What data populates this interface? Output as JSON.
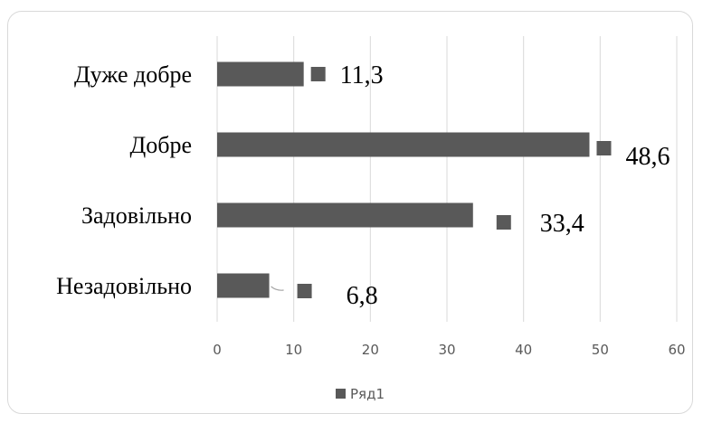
{
  "chart_data": {
    "type": "bar",
    "orientation": "horizontal",
    "categories": [
      "Дуже добре",
      "Добре",
      "Задовільно",
      "Незадовільно"
    ],
    "series": [
      {
        "name": "Ряд1",
        "values": [
          11.3,
          48.6,
          33.4,
          6.8
        ],
        "data_labels": [
          "11,3",
          "48,6",
          "33,4",
          "6,8"
        ],
        "color": "#595959"
      }
    ],
    "x_ticks": [
      "0",
      "10",
      "20",
      "30",
      "40",
      "50",
      "60"
    ],
    "xlim": [
      0,
      60
    ],
    "grid": true,
    "legend": "bottom",
    "gridline_color": "#d9d9d9"
  }
}
